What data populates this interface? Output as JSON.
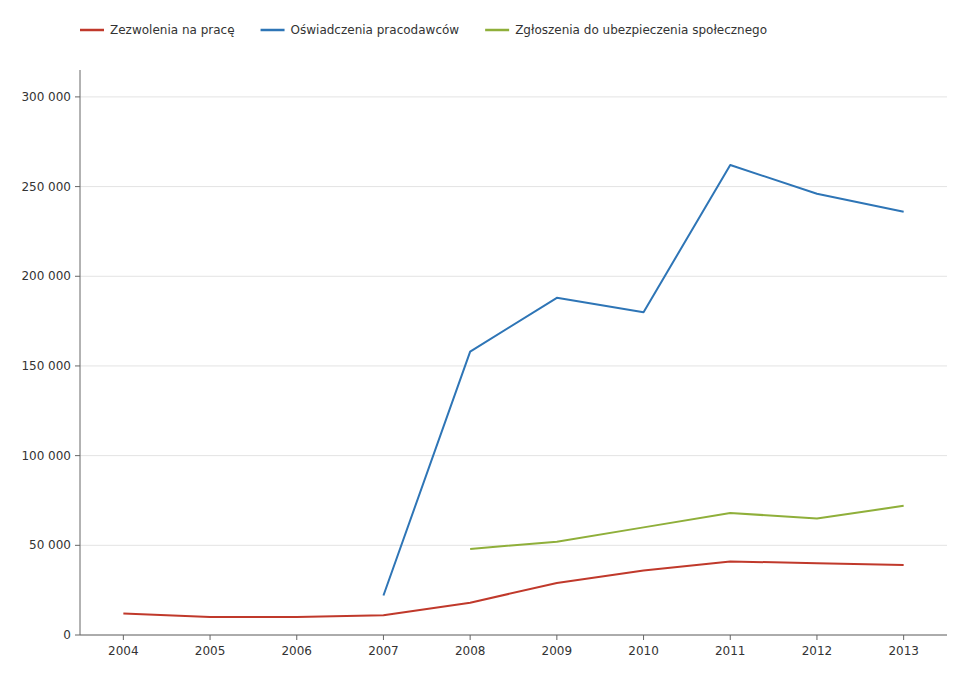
{
  "chart_data": {
    "type": "line",
    "x": [
      2004,
      2005,
      2006,
      2007,
      2008,
      2009,
      2010,
      2011,
      2012,
      2013
    ],
    "series": [
      {
        "name": "Zezwolenia na pracę",
        "color": "#c0392b",
        "values": [
          12000,
          10000,
          10000,
          11000,
          18000,
          29000,
          36000,
          41000,
          40000,
          39000
        ]
      },
      {
        "name": "Oświadczenia pracodawców",
        "color": "#2e75b6",
        "values": [
          null,
          null,
          null,
          22000,
          158000,
          188000,
          180000,
          262000,
          246000,
          236000
        ]
      },
      {
        "name": "Zgłoszenia do ubezpieczenia społecznego",
        "color": "#8faf3a",
        "values": [
          null,
          null,
          null,
          null,
          48000,
          52000,
          60000,
          68000,
          65000,
          72000
        ]
      }
    ],
    "xlim": [
      2003.5,
      2013.5
    ],
    "xticks": [
      2004,
      2005,
      2006,
      2007,
      2008,
      2009,
      2010,
      2011,
      2012,
      2013
    ],
    "ylim": [
      0,
      315000
    ],
    "yticks": [
      0,
      {
        "value": 50000,
        "label": "50 000"
      },
      {
        "value": 100000,
        "label": "100 000"
      },
      {
        "value": 150000,
        "label": "150 000"
      },
      {
        "value": 200000,
        "label": "200 000"
      },
      {
        "value": 250000,
        "label": "250 000"
      },
      {
        "value": 300000,
        "label": "300 000"
      }
    ],
    "grid": true,
    "legend": "top"
  }
}
